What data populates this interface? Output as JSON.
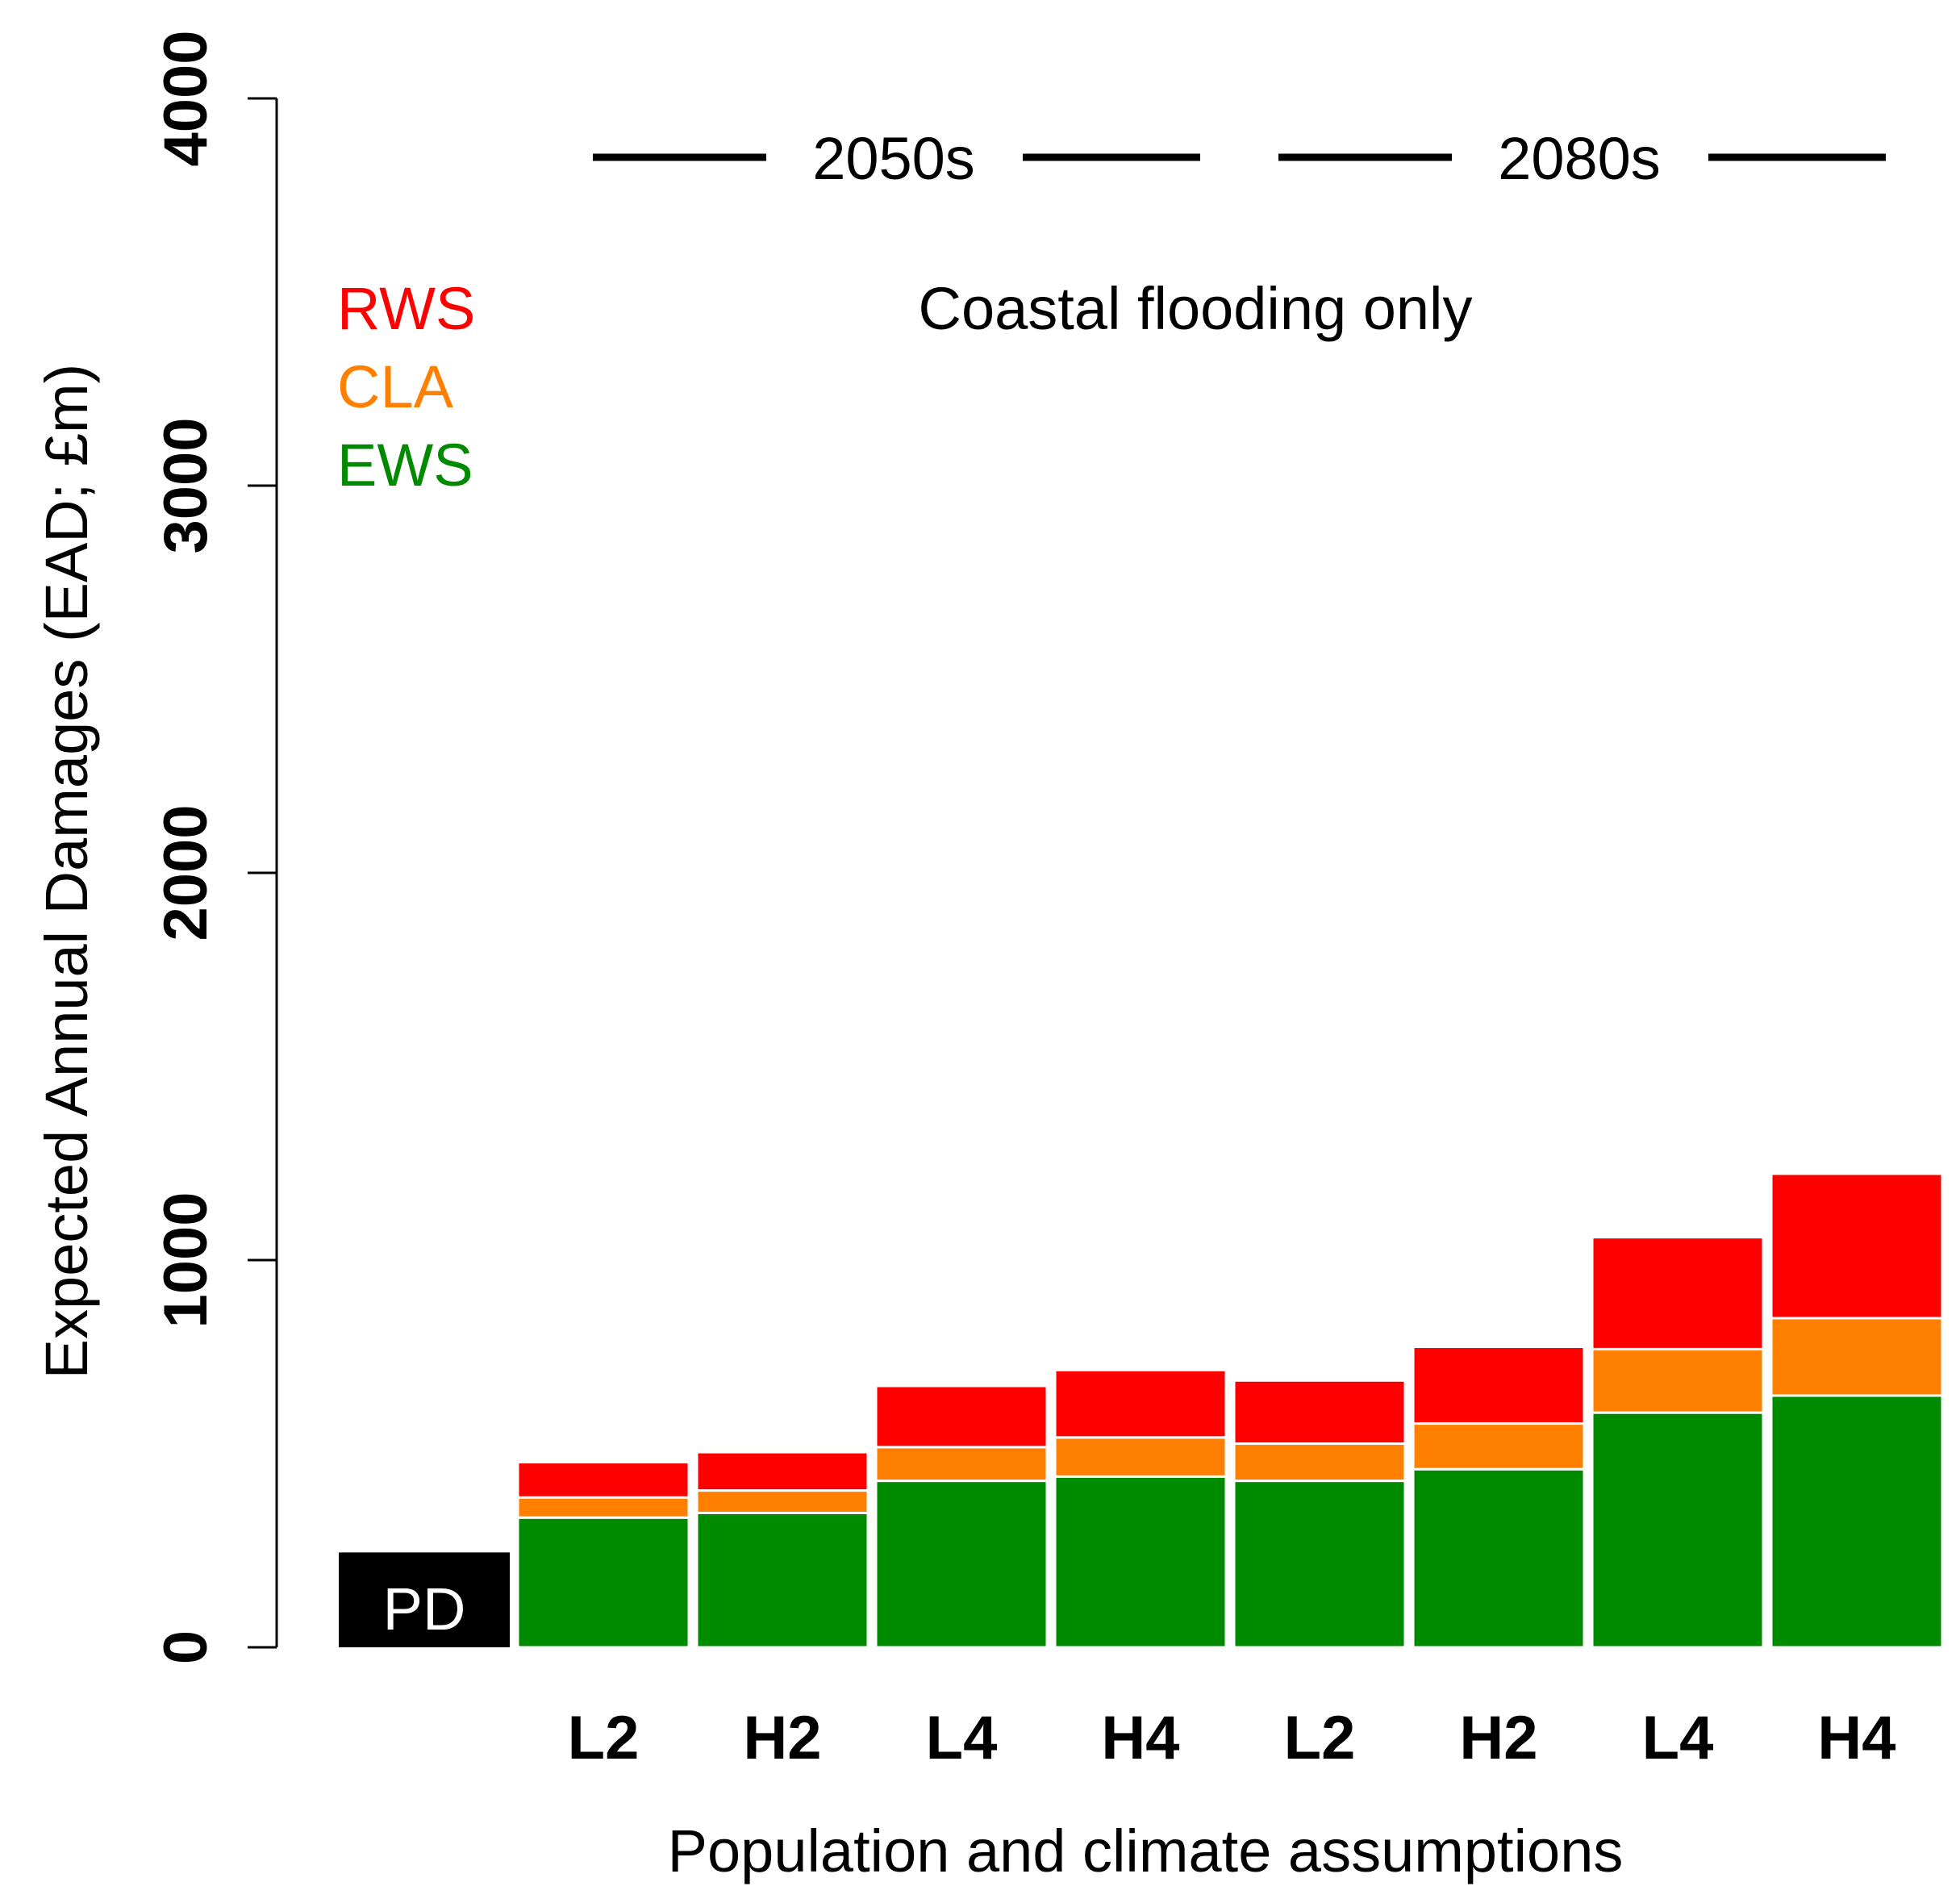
{
  "chart_data": {
    "type": "bar",
    "stacked": true,
    "title": "",
    "annotation": "Coastal flooding only",
    "xlabel": "Population and climate assumptions",
    "ylabel": "Expected Annual Damages (EAD; £m)",
    "ylim": [
      0,
      4000
    ],
    "yticks": [
      0,
      1000,
      2000,
      3000,
      4000
    ],
    "grid": false,
    "legend_placement": "top-left",
    "legend": [
      {
        "name": "RWS",
        "color": "#ff0000"
      },
      {
        "name": "CLA",
        "color": "#ff8000"
      },
      {
        "name": "EWS",
        "color": "#008a00"
      }
    ],
    "period_labels": [
      {
        "label": "2050s",
        "from": 1,
        "to": 4
      },
      {
        "label": "2080s",
        "from": 5,
        "to": 8
      }
    ],
    "baseline": {
      "label": "PD",
      "value": 245,
      "color": "#000000"
    },
    "categories": [
      "L2",
      "H2",
      "L4",
      "H4",
      "L2",
      "H2",
      "L4",
      "H4"
    ],
    "series": [
      {
        "name": "EWS",
        "color": "#008a00",
        "values": [
          335,
          347,
          430,
          441,
          430,
          460,
          606,
          650
        ]
      },
      {
        "name": "CLA",
        "color": "#ff8000",
        "values": [
          52,
          58,
          87,
          101,
          96,
          118,
          164,
          200
        ]
      },
      {
        "name": "RWS",
        "color": "#ff0000",
        "values": [
          91,
          99,
          158,
          174,
          163,
          198,
          289,
          373
        ]
      }
    ]
  }
}
